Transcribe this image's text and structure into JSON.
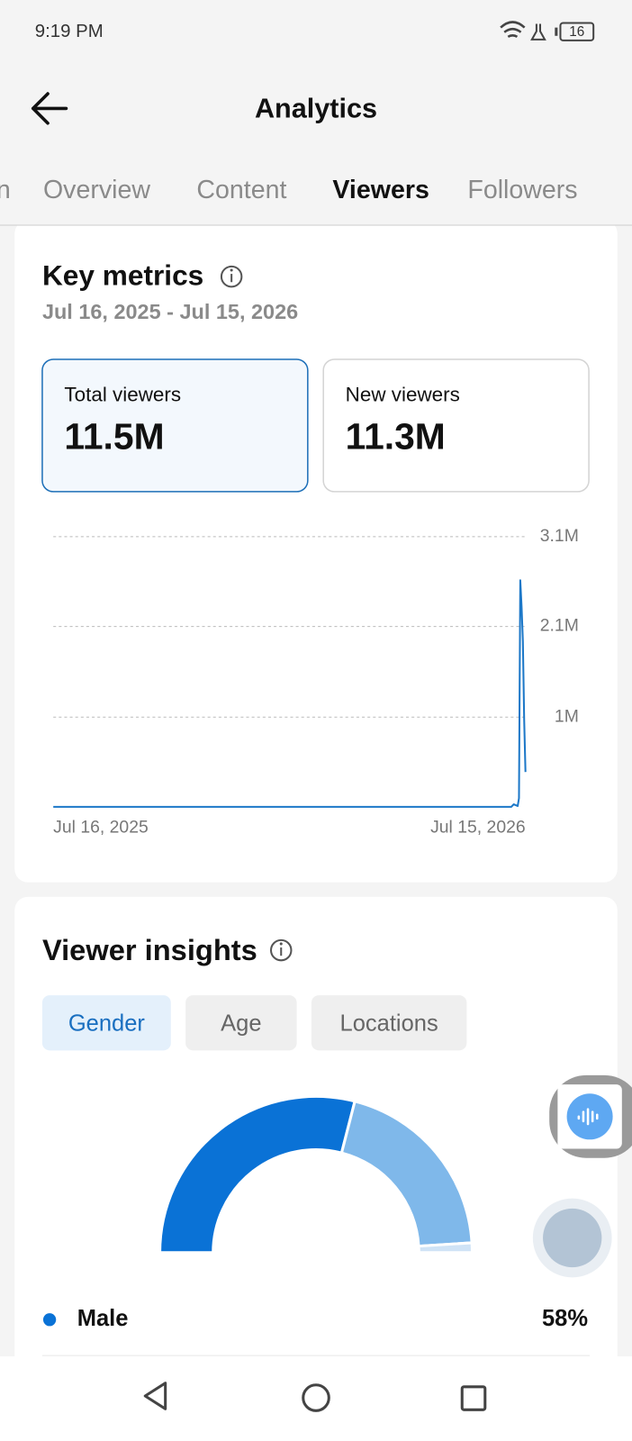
{
  "status_bar": {
    "time": "9:19 PM",
    "battery": "16"
  },
  "header": {
    "title": "Analytics"
  },
  "tabs": {
    "items": [
      "n",
      "Overview",
      "Content",
      "Viewers",
      "Followers"
    ],
    "active": 3
  },
  "key_metrics": {
    "title": "Key metrics",
    "date_range": "Jul 16, 2025 - Jul 15, 2026",
    "cards": [
      {
        "label": "Total viewers",
        "value": "11.5M"
      },
      {
        "label": "New viewers",
        "value": "11.3M"
      }
    ]
  },
  "viewer_insights": {
    "title": "Viewer insights",
    "chips": [
      "Gender",
      "Age",
      "Locations"
    ],
    "active_chip": 0
  },
  "chart_data": [
    {
      "type": "line",
      "x": [
        0,
        100,
        200,
        300,
        350,
        353,
        355,
        358,
        359,
        360,
        361,
        362,
        363,
        364
      ],
      "series": [
        {
          "name": "Total viewers",
          "color": "#1d78c8",
          "values": [
            0,
            0,
            0,
            0,
            0,
            0,
            30000,
            10000,
            100000,
            2600000,
            2300000,
            1900000,
            1000000,
            400000
          ]
        }
      ],
      "xlim": [
        0,
        364
      ],
      "xticks": [
        {
          "value": 0,
          "label": "Jul 16, 2025"
        },
        {
          "value": 364,
          "label": "Jul 15, 2026"
        }
      ],
      "ylim": [
        0,
        3100000
      ],
      "yticks": [
        {
          "value": 1030000,
          "label": "1M"
        },
        {
          "value": 2070000,
          "label": "2.1M"
        },
        {
          "value": 3100000,
          "label": "3.1M"
        }
      ],
      "grid": true
    },
    {
      "type": "half-donut",
      "categories": [
        "Male",
        null,
        null
      ],
      "values": [
        58,
        40,
        2
      ],
      "value_labels": [
        "58%",
        null,
        null
      ],
      "colors": [
        "#0a72d6",
        "#7fb8ea",
        "#cfe3f6"
      ]
    }
  ]
}
